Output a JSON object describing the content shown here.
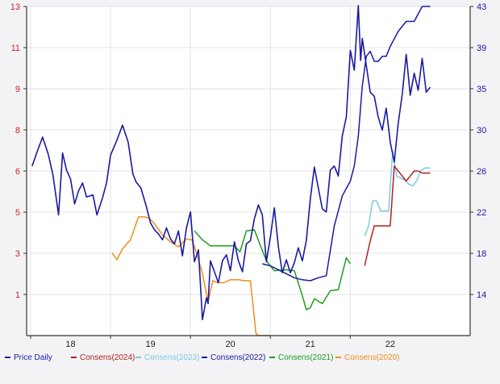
{
  "chart_data": {
    "type": "line",
    "title": "",
    "xlabel": "",
    "ylabel": "",
    "grid": true,
    "legend_position": "bottom",
    "x_ticks": [
      "18",
      "19",
      "20",
      "21",
      "22"
    ],
    "xlim": [
      2017.45,
      2023.0
    ],
    "y_left": {
      "ticks": [
        "13",
        "11",
        "9",
        "8",
        "6",
        "5",
        "3",
        "1"
      ],
      "color": "#cc2222"
    },
    "y_right": {
      "ticks": [
        "43",
        "39",
        "35",
        "30",
        "26",
        "22",
        "18",
        "14"
      ],
      "ylim": [
        10,
        43
      ],
      "color": "#1a1aa0"
    },
    "series": [
      {
        "name": "Price Daily",
        "axis": "right",
        "color": "#1a1aa0",
        "x": [
          2017.52,
          2017.58,
          2017.65,
          2017.72,
          2017.78,
          2017.85,
          2017.9,
          2017.95,
          2018.0,
          2018.05,
          2018.1,
          2018.15,
          2018.2,
          2018.28,
          2018.33,
          2018.4,
          2018.45,
          2018.5,
          2018.58,
          2018.65,
          2018.72,
          2018.78,
          2018.82,
          2018.88,
          2018.95,
          2019.0,
          2019.05,
          2019.1,
          2019.15,
          2019.2,
          2019.25,
          2019.3,
          2019.35,
          2019.4,
          2019.45,
          2019.5,
          2019.55,
          2019.6,
          2019.65,
          2019.7,
          2019.72,
          2019.75,
          2019.8,
          2019.85,
          2019.9,
          2019.95,
          2020.0,
          2020.05,
          2020.1,
          2020.15,
          2020.2,
          2020.25,
          2020.3,
          2020.35,
          2020.4,
          2020.45,
          2020.5,
          2020.55,
          2020.6,
          2020.65,
          2020.7,
          2020.75,
          2020.8,
          2020.85,
          2020.9,
          2020.95,
          2021.0,
          2021.05,
          2021.1,
          2021.15,
          2021.2,
          2021.25,
          2021.3,
          2021.35,
          2021.4,
          2021.45,
          2021.5,
          2021.55,
          2021.6,
          2021.63,
          2021.65,
          2021.7,
          2021.75,
          2021.8,
          2021.85,
          2021.9,
          2021.95,
          2022.0,
          2022.05,
          2022.1,
          2022.15,
          2022.2,
          2022.25,
          2022.3,
          2022.35,
          2022.4,
          2022.45,
          2022.5
        ],
        "y": [
          27.0,
          28.4,
          29.9,
          28.2,
          26.1,
          22.1,
          28.3,
          26.6,
          25.7,
          23.2,
          24.5,
          25.3,
          23.9,
          24.1,
          22.1,
          23.8,
          25.3,
          28.1,
          29.6,
          31.1,
          29.4,
          26.2,
          25.4,
          24.8,
          22.9,
          21.3,
          20.6,
          20.2,
          19.6,
          20.8,
          19.7,
          19.2,
          20.5,
          18.0,
          20.8,
          22.4,
          17.4,
          18.6,
          11.6,
          13.8,
          13.2,
          17.5,
          16.4,
          15.3,
          17.5,
          18.1,
          16.5,
          19.4,
          17.5,
          16.4,
          19.2,
          19.5,
          21.7,
          23.1,
          22.1,
          17.4,
          19.9,
          22.8,
          18.9,
          16.3,
          17.6,
          16.3,
          17.3,
          18.8,
          17.5,
          19.5,
          23.7,
          26.9,
          24.8,
          22.7,
          22.4,
          26.6,
          27.0,
          26.0,
          30.0,
          31.9,
          38.6,
          36.6,
          43.1,
          37.6,
          39.8,
          37.1,
          34.4,
          34.0,
          31.9,
          30.6,
          32.8,
          29.4,
          27.4,
          31.3,
          34.2,
          38.2,
          34.1,
          36.3,
          34.6,
          37.8,
          34.4,
          34.9
        ]
      },
      {
        "name": "Consens(2024)",
        "axis": "right",
        "color": "#b22222",
        "x": [
          2021.68,
          2021.75,
          2021.8,
          2021.85,
          2021.9,
          2021.95,
          2022.0,
          2022.05,
          2022.1,
          2022.15,
          2022.2,
          2022.25,
          2022.3,
          2022.35,
          2022.4,
          2022.45,
          2022.5
        ],
        "y": [
          17.0,
          19.5,
          21.0,
          21.0,
          21.0,
          21.0,
          21.0,
          27.0,
          26.5,
          26.0,
          25.5,
          26.0,
          26.5,
          26.5,
          26.3,
          26.3,
          26.3
        ]
      },
      {
        "name": "Consens(2023)",
        "axis": "right",
        "color": "#7ec8e3",
        "x": [
          2021.68,
          2021.73,
          2021.78,
          2021.83,
          2021.88,
          2021.93,
          2021.98,
          2022.03,
          2022.08,
          2022.13,
          2022.18,
          2022.23,
          2022.28,
          2022.33,
          2022.38,
          2022.43,
          2022.5
        ],
        "y": [
          20.0,
          21.0,
          23.5,
          23.5,
          22.5,
          22.5,
          22.5,
          28.5,
          26.0,
          25.8,
          25.6,
          25.2,
          25.0,
          25.5,
          26.5,
          26.8,
          26.8
        ]
      },
      {
        "name": "Consens(2022)",
        "axis": "right",
        "color": "#1a1aa0",
        "x": [
          2020.4,
          2020.5,
          2020.6,
          2020.7,
          2020.8,
          2020.9,
          2021.0,
          2021.1,
          2021.2,
          2021.3,
          2021.4,
          2021.5,
          2021.55,
          2021.6,
          2021.65,
          2021.7,
          2021.75,
          2021.8,
          2021.85,
          2021.9,
          2021.95,
          2022.0,
          2022.1,
          2022.2,
          2022.3,
          2022.4,
          2022.45,
          2022.5
        ],
        "y": [
          17.2,
          17.0,
          16.6,
          16.2,
          15.8,
          15.6,
          15.5,
          15.8,
          16.0,
          21.0,
          24.0,
          25.5,
          27.0,
          30.0,
          35.0,
          38.0,
          38.5,
          37.5,
          37.5,
          38.0,
          38.0,
          39.0,
          40.5,
          41.5,
          41.5,
          43.0,
          43.0,
          43.0
        ]
      },
      {
        "name": "Consens(2021)",
        "axis": "right",
        "color": "#1f9e1f",
        "x": [
          2019.55,
          2019.65,
          2019.75,
          2019.85,
          2019.95,
          2020.05,
          2020.12,
          2020.2,
          2020.3,
          2020.45,
          2020.55,
          2020.7,
          2020.8,
          2020.9,
          2020.95,
          2021.0,
          2021.05,
          2021.15,
          2021.25,
          2021.35,
          2021.45,
          2021.5
        ],
        "y": [
          20.5,
          19.6,
          19.0,
          19.0,
          19.0,
          19.0,
          18.4,
          20.5,
          20.6,
          17.5,
          16.5,
          16.6,
          16.5,
          14.0,
          12.6,
          12.8,
          13.7,
          13.2,
          14.5,
          14.6,
          17.8,
          17.2
        ],
        "stair": false
      },
      {
        "name": "Consens(2020)",
        "axis": "right",
        "color": "#f08c1e",
        "x": [
          2018.52,
          2018.58,
          2018.65,
          2018.75,
          2018.85,
          2018.92,
          2018.98,
          2019.05,
          2019.15,
          2019.25,
          2019.35,
          2019.45,
          2019.52,
          2019.58,
          2019.65,
          2019.72,
          2019.78,
          2019.85,
          2019.92,
          2020.0,
          2020.1,
          2020.18,
          2020.25,
          2020.32,
          2020.36,
          2020.42,
          2020.5
        ],
        "y": [
          18.3,
          17.6,
          18.7,
          19.6,
          21.9,
          21.9,
          21.8,
          21.2,
          20.1,
          19.4,
          18.9,
          19.7,
          19.6,
          18.2,
          16.2,
          13.4,
          15.5,
          15.3,
          15.3,
          15.6,
          15.6,
          15.5,
          15.5,
          10.2,
          10.0,
          10.0,
          10.0
        ]
      }
    ]
  }
}
